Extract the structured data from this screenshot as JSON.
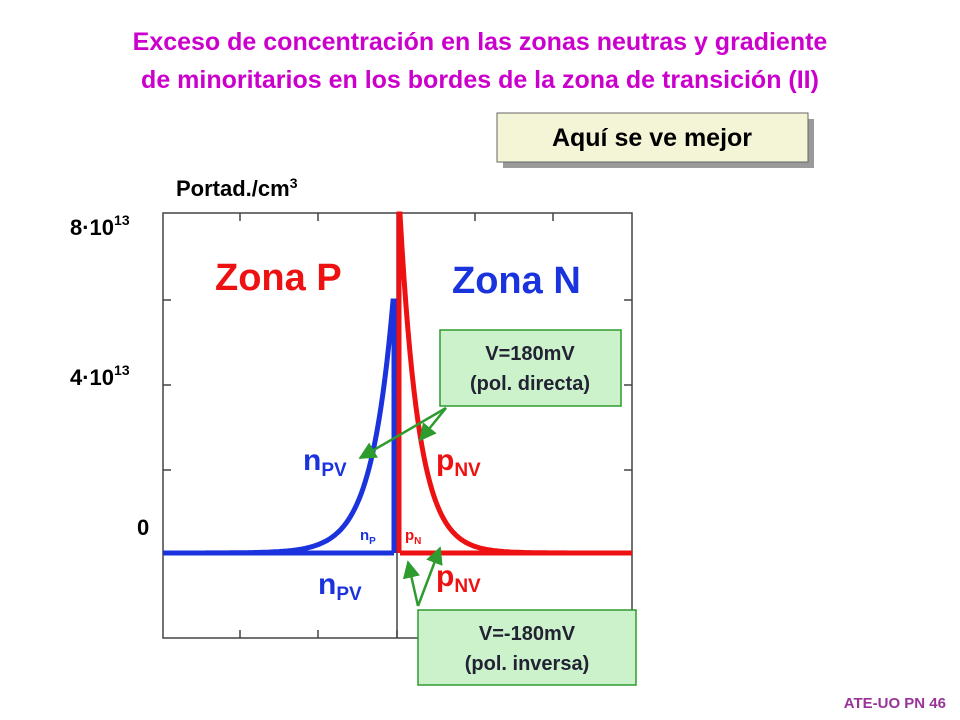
{
  "title": [
    "Exceso de concentración en las zonas neutras y gradiente",
    "de minoritarios en los bordes de la zona de transición (II)"
  ],
  "button": "Aquí se ve mejor",
  "axis": {
    "label": "Portad./cm",
    "label_sup": "3",
    "ticks": [
      {
        "base": "8·10",
        "exp": "13"
      },
      {
        "base": "4·10",
        "exp": "13"
      },
      {
        "base": "0"
      }
    ]
  },
  "zones": [
    "Zona P",
    "Zona N"
  ],
  "curve_labels": {
    "n_pv_forward": {
      "main": "n",
      "sub": "PV"
    },
    "p_nv_forward": {
      "main": "p",
      "sub": "NV"
    },
    "n_pv_reverse": {
      "main": "n",
      "sub": "PV"
    },
    "p_nv_reverse": {
      "main": "p",
      "sub": "NV"
    },
    "n_p": {
      "main": "n",
      "sub": "P"
    },
    "p_n": {
      "main": "p",
      "sub": "N"
    }
  },
  "boxes": [
    {
      "lines": [
        "V=180mV",
        "(pol. directa)"
      ]
    },
    {
      "lines": [
        "V=-180mV",
        "(pol. inversa)"
      ]
    }
  ],
  "footer": "ATE-UO PN 46"
}
